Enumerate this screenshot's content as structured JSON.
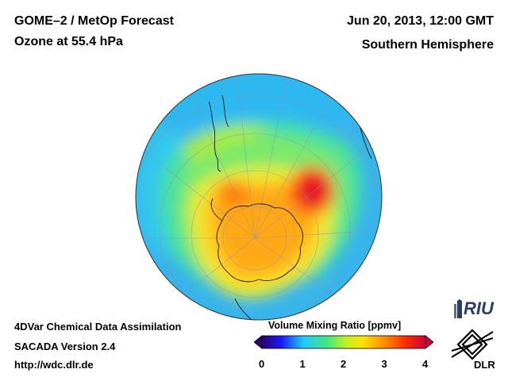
{
  "header": {
    "title_line1": "GOME–2 / MetOp Forecast",
    "title_line2": "Ozone at 55.4 hPa",
    "date": "Jun 20, 2013, 12:00 GMT",
    "region": "Southern Hemisphere"
  },
  "footer": {
    "line1": "4DVar Chemical Data Assimilation",
    "line2": "SACADA Version 2.4",
    "url": "http://wdc.dlr.de"
  },
  "colorbar": {
    "title": "Volume Mixing Ratio [ppmv]",
    "ticks": [
      "0",
      "1",
      "2",
      "3",
      "4"
    ],
    "range": [
      0,
      4
    ],
    "stops": [
      "#2a0070",
      "#1a1aff",
      "#22c8ff",
      "#3ee880",
      "#c8f020",
      "#ffe000",
      "#ff8c00",
      "#ff2a00",
      "#d0003a"
    ]
  },
  "map": {
    "projection": "orthographic, South Pole centred",
    "background": "#3ab8e8"
  },
  "logos": {
    "riu_text": "RIU",
    "dlr_text": "DLR"
  }
}
